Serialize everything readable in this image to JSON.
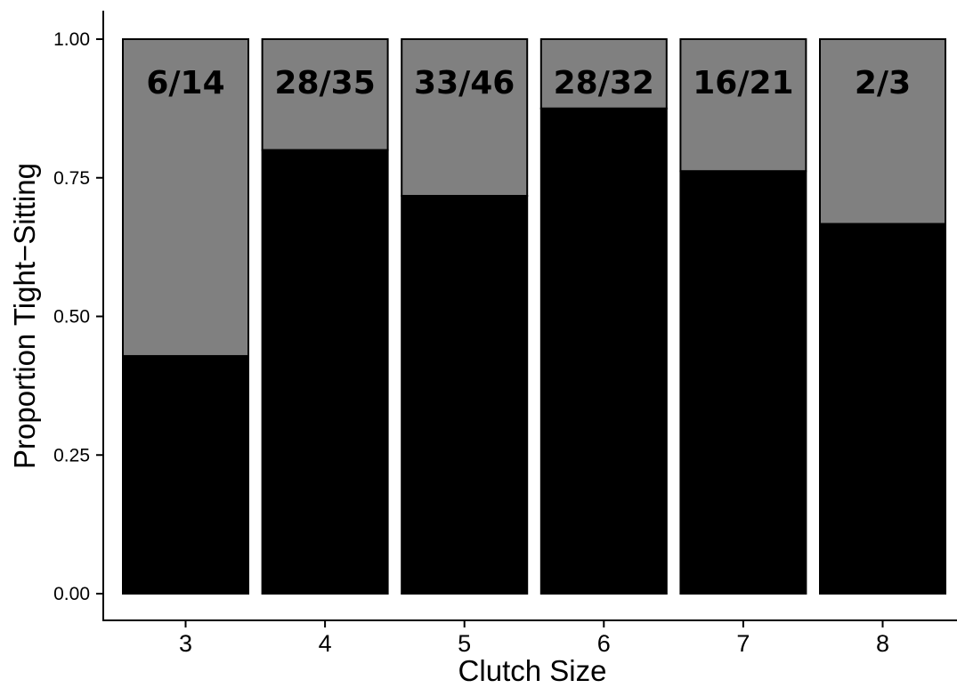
{
  "chart_data": {
    "type": "bar",
    "stacked": true,
    "categories": [
      "3",
      "4",
      "5",
      "6",
      "7",
      "8"
    ],
    "successes": [
      6,
      28,
      33,
      28,
      16,
      2
    ],
    "totals": [
      14,
      35,
      46,
      32,
      21,
      3
    ],
    "values": [
      0.4286,
      0.8,
      0.7174,
      0.875,
      0.7619,
      0.6667
    ],
    "bar_labels": [
      "6/14",
      "28/35",
      "33/46",
      "28/32",
      "16/21",
      "2/3"
    ],
    "xlabel": "Clutch Size",
    "ylabel": "Proportion Tight−Sitting",
    "ylim": [
      0,
      1
    ],
    "yticks": [
      0,
      0.25,
      0.5,
      0.75,
      1
    ],
    "ytick_labels": [
      "0.00",
      "0.25",
      "0.50",
      "0.75",
      "1.00"
    ],
    "grid": false,
    "colors": {
      "tight_sitting": "#000000",
      "remainder": "#808080",
      "outline": "#000000"
    }
  }
}
